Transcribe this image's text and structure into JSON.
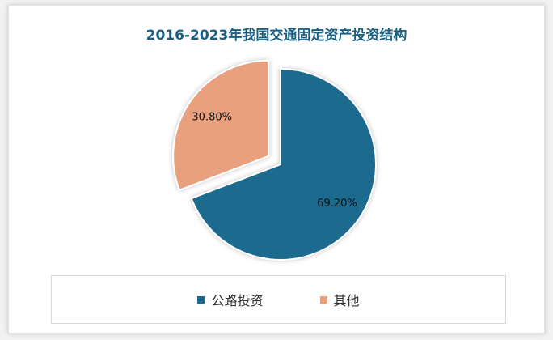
{
  "title": "2016-2023年我国交通固定资产投资结构",
  "colors": {
    "title": "#1a5f80",
    "series": [
      "#1b6a8d",
      "#e8a07e"
    ]
  },
  "chart_data": {
    "type": "pie",
    "title": "2016-2023年我国交通固定资产投资结构",
    "slices": [
      {
        "label": "公路投资",
        "value": 69.2,
        "display": "69.20%"
      },
      {
        "label": "其他",
        "value": 30.8,
        "display": "30.80%"
      }
    ],
    "exploded": "其他",
    "legend_position": "bottom"
  }
}
